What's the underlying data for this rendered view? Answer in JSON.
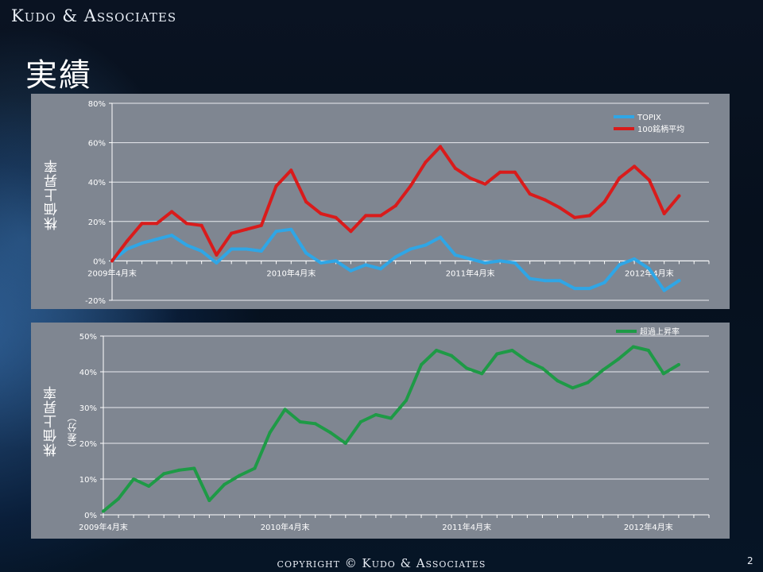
{
  "header": {
    "company": "Kudo & Associates",
    "title": "実績"
  },
  "footer": {
    "copyright": "copyright © Kudo & Associates",
    "page_number": "2"
  },
  "chart_data": [
    {
      "type": "line",
      "ylabel": "株価上昇率",
      "ylim": [
        -20,
        80
      ],
      "yticks": [
        -20,
        0,
        20,
        40,
        60,
        80
      ],
      "ytick_labels": [
        "-20%",
        "0%",
        "20%",
        "40%",
        "60%",
        "80%"
      ],
      "x_count": 40,
      "x_tick_labels": [
        {
          "index": 0,
          "label": "2009年4月末"
        },
        {
          "index": 12,
          "label": "2010年4月末"
        },
        {
          "index": 24,
          "label": "2011年4月末"
        },
        {
          "index": 36,
          "label": "2012年4月末"
        }
      ],
      "grid": true,
      "legend": "top-right",
      "series": [
        {
          "name": "TOPIX",
          "color": "#2fa6e6",
          "values": [
            0,
            6,
            9,
            11,
            13,
            8,
            5,
            -1,
            6,
            6,
            5,
            15,
            16,
            4,
            -1,
            0,
            -5,
            -2,
            -4,
            2,
            6,
            8,
            12,
            3,
            1,
            -1,
            0,
            -1,
            -9,
            -10,
            -10,
            -14,
            -14,
            -11,
            -2,
            1,
            -4,
            -15,
            -10
          ]
        },
        {
          "name": "100銘柄平均",
          "color": "#d91b1b",
          "values": [
            0,
            10,
            19,
            19,
            25,
            19,
            18,
            3,
            14,
            16,
            18,
            38,
            46,
            30,
            24,
            22,
            15,
            23,
            23,
            28,
            38,
            50,
            58,
            47,
            42,
            39,
            45,
            45,
            34,
            31,
            27,
            22,
            23,
            30,
            42,
            48,
            41,
            24,
            33
          ]
        }
      ]
    },
    {
      "type": "line",
      "ylabel": "株価上昇率",
      "ylabel_sub": "（差分）",
      "ylim": [
        0,
        50
      ],
      "yticks": [
        0,
        10,
        20,
        30,
        40,
        50
      ],
      "ytick_labels": [
        "0%",
        "10%",
        "20%",
        "30%",
        "40%",
        "50%"
      ],
      "x_count": 40,
      "x_tick_labels": [
        {
          "index": 0,
          "label": "2009年4月末"
        },
        {
          "index": 12,
          "label": "2010年4月末"
        },
        {
          "index": 24,
          "label": "2011年4月末"
        },
        {
          "index": 36,
          "label": "2012年4月末"
        }
      ],
      "grid": true,
      "legend": "top-right",
      "series": [
        {
          "name": "超過上昇率",
          "color": "#1e9a46",
          "values": [
            1,
            4.5,
            10,
            8,
            11.5,
            12.5,
            13,
            4,
            8.5,
            11,
            13,
            23,
            29.5,
            26,
            25.5,
            23,
            20,
            26,
            28,
            27,
            32,
            42,
            46,
            44.5,
            41,
            39.5,
            45,
            46,
            43,
            41,
            37.5,
            35.5,
            37,
            40.5,
            43.5,
            47,
            46,
            39.5,
            42
          ]
        }
      ]
    }
  ]
}
